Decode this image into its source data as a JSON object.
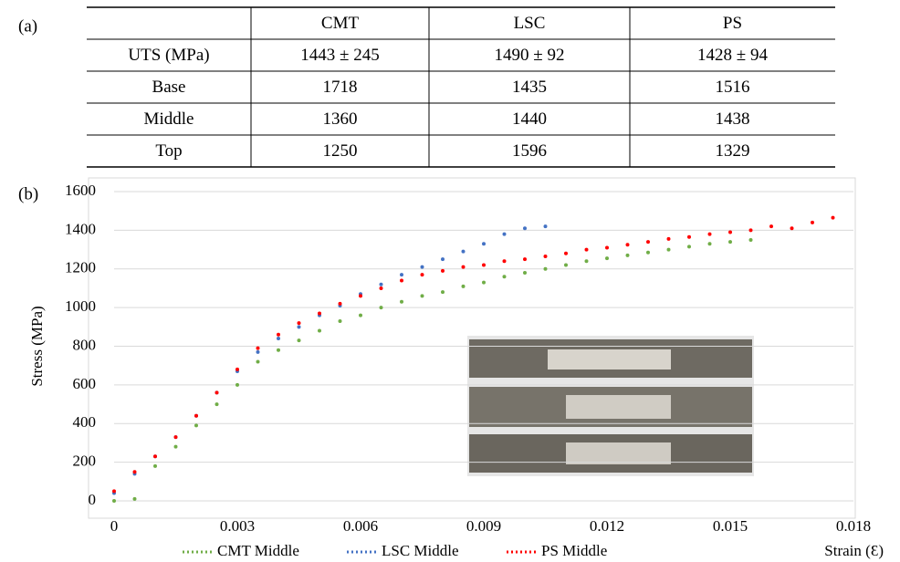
{
  "panel_labels": [
    "(a)",
    "(b)"
  ],
  "table": {
    "columns": [
      "CMT",
      "LSC",
      "PS"
    ],
    "rows": [
      {
        "label": "UTS (MPa)",
        "cells": [
          "1443 ± 245",
          "1490 ± 92",
          "1428 ± 94"
        ]
      },
      {
        "label": "Base",
        "cells": [
          "1718",
          "1435",
          "1516"
        ]
      },
      {
        "label": "Middle",
        "cells": [
          "1360",
          "1440",
          "1438"
        ]
      },
      {
        "label": "Top",
        "cells": [
          "1250",
          "1596",
          "1329"
        ]
      }
    ]
  },
  "chart_data": {
    "type": "line",
    "y_label": "Stress (MPa)",
    "x_label": "Strain (Ɛ)",
    "x": [
      0,
      0.0005,
      0.001,
      0.0015,
      0.002,
      0.0025,
      0.003,
      0.0035,
      0.004,
      0.0045,
      0.005,
      0.0055,
      0.006,
      0.0065,
      0.007,
      0.0075,
      0.008,
      0.0085,
      0.009,
      0.0095,
      0.01,
      0.0105,
      0.011,
      0.0115,
      0.012,
      0.0125,
      0.013,
      0.0135,
      0.014,
      0.0145,
      0.015,
      0.0155,
      0.016,
      0.0165,
      0.017,
      0.0175
    ],
    "series": [
      {
        "name": "CMT Middle",
        "color": "#70ad47",
        "values": [
          0,
          10,
          180,
          280,
          390,
          500,
          600,
          720,
          780,
          830,
          880,
          930,
          960,
          1000,
          1030,
          1060,
          1080,
          1110,
          1130,
          1160,
          1180,
          1200,
          1220,
          1240,
          1255,
          1270,
          1285,
          1300,
          1315,
          1330,
          1340,
          1350,
          null,
          null,
          null,
          null
        ]
      },
      {
        "name": "LSC Middle",
        "color": "#4472c4",
        "values": [
          40,
          140,
          230,
          330,
          440,
          560,
          670,
          770,
          840,
          900,
          960,
          1010,
          1070,
          1120,
          1170,
          1210,
          1250,
          1290,
          1330,
          1380,
          1410,
          1420,
          null,
          null,
          null,
          null,
          null,
          null,
          null,
          null,
          null,
          null,
          null,
          null,
          null,
          null
        ]
      },
      {
        "name": "PS Middle",
        "color": "#ff0000",
        "values": [
          50,
          150,
          230,
          330,
          440,
          560,
          680,
          790,
          860,
          920,
          970,
          1020,
          1060,
          1100,
          1140,
          1170,
          1190,
          1210,
          1220,
          1240,
          1250,
          1265,
          1280,
          1300,
          1310,
          1325,
          1340,
          1355,
          1365,
          1380,
          1390,
          1400,
          1420,
          1410,
          1440,
          1465
        ]
      }
    ],
    "xlim": [
      0,
      0.018
    ],
    "xticks": [
      0,
      0.003,
      0.006,
      0.009,
      0.012,
      0.015,
      0.018
    ],
    "ylim": [
      0,
      1600
    ],
    "yticks": [
      0,
      200,
      400,
      600,
      800,
      1000,
      1200,
      1400,
      1600
    ],
    "grid": true,
    "legend": "bottom"
  }
}
